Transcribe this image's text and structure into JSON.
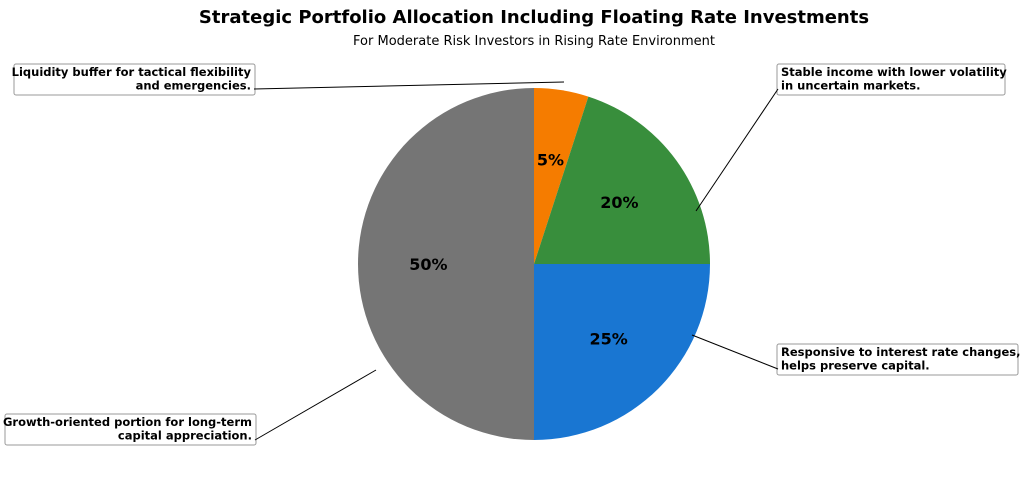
{
  "chart_data": {
    "type": "pie",
    "title": "Strategic Portfolio Allocation Including Floating Rate Investments",
    "subtitle": "For Moderate Risk Investors in Rising Rate Environment",
    "slices": [
      {
        "value": 5,
        "label": "5%",
        "color": "#f57c00",
        "annotation": [
          "Liquidity buffer for tactical flexibility",
          "and emergencies."
        ]
      },
      {
        "value": 20,
        "label": "20%",
        "color": "#388e3c",
        "annotation": [
          "Stable income with lower volatility",
          "in uncertain markets."
        ]
      },
      {
        "value": 25,
        "label": "25%",
        "color": "#1976d2",
        "annotation": [
          "Responsive to interest rate changes,",
          "helps preserve capital."
        ]
      },
      {
        "value": 50,
        "label": "50%",
        "color": "#757575",
        "annotation": [
          "Growth-oriented portion for long-term",
          "capital appreciation."
        ]
      }
    ],
    "start_angle": "12 o'clock",
    "direction": "clockwise"
  }
}
